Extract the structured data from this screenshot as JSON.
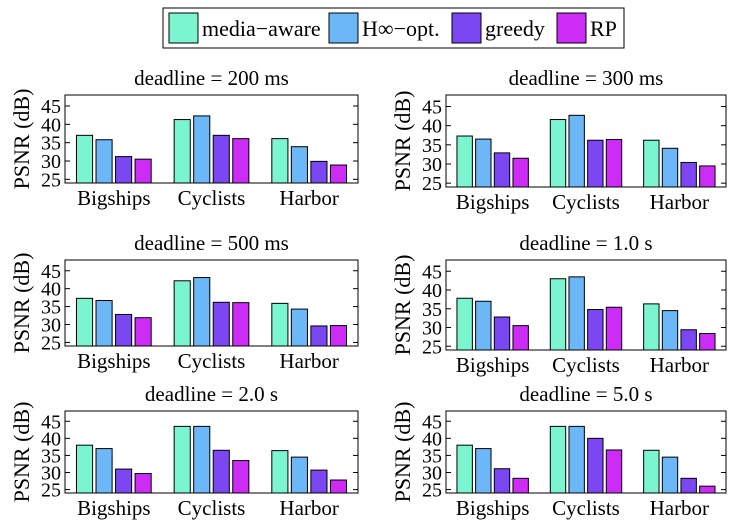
{
  "legend": {
    "items": [
      {
        "label": "media−aware",
        "color": "#7af5cf"
      },
      {
        "label": "H∞−opt.",
        "color": "#6cb7f7"
      },
      {
        "label": "greedy",
        "color": "#7b47f2"
      },
      {
        "label": "RP",
        "color": "#cc2cf5"
      }
    ]
  },
  "chart_data": [
    {
      "type": "bar",
      "title": "deadline = 200 ms",
      "ylabel": "PSNR (dB)",
      "ylim": [
        24,
        48
      ],
      "yticks": [
        "25",
        "30",
        "35",
        "40",
        "45"
      ],
      "categories": [
        "Bigships",
        "Cyclists",
        "Harbor"
      ],
      "series": [
        {
          "name": "media−aware",
          "values": [
            37.0,
            41.3,
            36.1
          ]
        },
        {
          "name": "H∞−opt.",
          "values": [
            35.8,
            42.3,
            33.9
          ]
        },
        {
          "name": "greedy",
          "values": [
            31.2,
            37.0,
            29.9
          ]
        },
        {
          "name": "RP",
          "values": [
            30.5,
            36.1,
            28.9
          ]
        }
      ]
    },
    {
      "type": "bar",
      "title": "deadline = 300 ms",
      "ylabel": "PSNR (dB)",
      "ylim": [
        24,
        48
      ],
      "yticks": [
        "25",
        "30",
        "35",
        "40",
        "45"
      ],
      "categories": [
        "Bigships",
        "Cyclists",
        "Harbor"
      ],
      "series": [
        {
          "name": "media−aware",
          "values": [
            37.3,
            41.6,
            36.2
          ]
        },
        {
          "name": "H∞−opt.",
          "values": [
            36.5,
            42.7,
            34.1
          ]
        },
        {
          "name": "greedy",
          "values": [
            32.9,
            36.2,
            30.4
          ]
        },
        {
          "name": "RP",
          "values": [
            31.5,
            36.4,
            29.5
          ]
        }
      ]
    },
    {
      "type": "bar",
      "title": "deadline = 500 ms",
      "ylabel": "PSNR (dB)",
      "ylim": [
        24,
        48
      ],
      "yticks": [
        "25",
        "30",
        "35",
        "40",
        "45"
      ],
      "categories": [
        "Bigships",
        "Cyclists",
        "Harbor"
      ],
      "series": [
        {
          "name": "media−aware",
          "values": [
            37.3,
            42.2,
            35.9
          ]
        },
        {
          "name": "H∞−opt.",
          "values": [
            36.7,
            43.1,
            34.3
          ]
        },
        {
          "name": "greedy",
          "values": [
            32.8,
            36.2,
            29.6
          ]
        },
        {
          "name": "RP",
          "values": [
            31.9,
            36.1,
            29.7
          ]
        }
      ]
    },
    {
      "type": "bar",
      "title": "deadline = 1.0 s",
      "ylabel": "PSNR (dB)",
      "ylim": [
        24,
        48
      ],
      "yticks": [
        "25",
        "30",
        "35",
        "40",
        "45"
      ],
      "categories": [
        "Bigships",
        "Cyclists",
        "Harbor"
      ],
      "series": [
        {
          "name": "media−aware",
          "values": [
            37.8,
            43.0,
            36.3
          ]
        },
        {
          "name": "H∞−opt.",
          "values": [
            37.0,
            43.5,
            34.5
          ]
        },
        {
          "name": "greedy",
          "values": [
            32.8,
            34.8,
            29.4
          ]
        },
        {
          "name": "RP",
          "values": [
            30.5,
            35.4,
            28.4
          ]
        }
      ]
    },
    {
      "type": "bar",
      "title": "deadline = 2.0 s",
      "ylabel": "PSNR (dB)",
      "ylim": [
        24,
        48
      ],
      "yticks": [
        "25",
        "30",
        "35",
        "40",
        "45"
      ],
      "categories": [
        "Bigships",
        "Cyclists",
        "Harbor"
      ],
      "series": [
        {
          "name": "media−aware",
          "values": [
            38.0,
            43.5,
            36.4
          ]
        },
        {
          "name": "H∞−opt.",
          "values": [
            37.0,
            43.5,
            34.5
          ]
        },
        {
          "name": "greedy",
          "values": [
            31.0,
            36.5,
            30.7
          ]
        },
        {
          "name": "RP",
          "values": [
            29.7,
            33.5,
            27.8
          ]
        }
      ]
    },
    {
      "type": "bar",
      "title": "deadline = 5.0 s",
      "ylabel": "PSNR (dB)",
      "ylim": [
        24,
        48
      ],
      "yticks": [
        "25",
        "30",
        "35",
        "40",
        "45"
      ],
      "categories": [
        "Bigships",
        "Cyclists",
        "Harbor"
      ],
      "series": [
        {
          "name": "media−aware",
          "values": [
            38.0,
            43.5,
            36.5
          ]
        },
        {
          "name": "H∞−opt.",
          "values": [
            37.0,
            43.5,
            34.5
          ]
        },
        {
          "name": "greedy",
          "values": [
            31.1,
            40.0,
            28.3
          ]
        },
        {
          "name": "RP",
          "values": [
            28.3,
            36.6,
            26.0
          ]
        }
      ]
    }
  ]
}
